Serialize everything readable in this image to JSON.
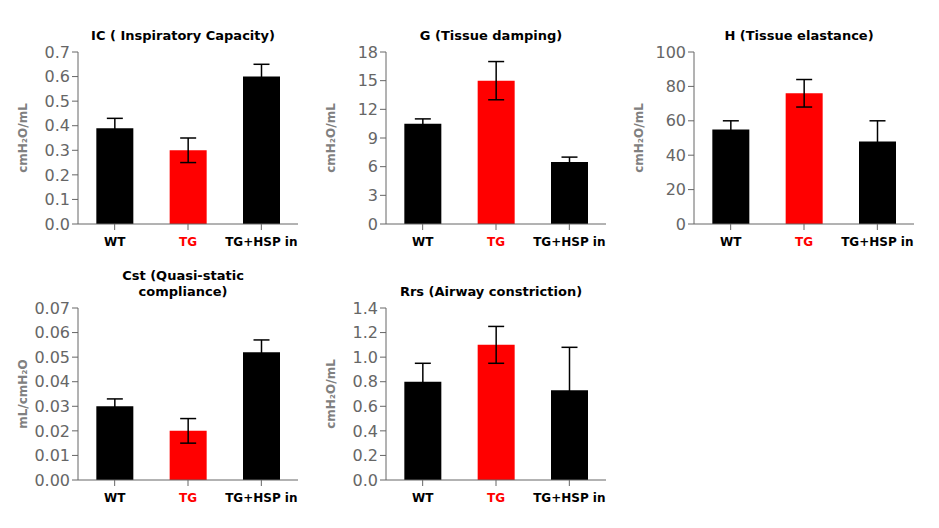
{
  "chart_data": [
    {
      "type": "bar",
      "title": "IC ( Inspiratory Capacity)",
      "y_label": "cmH₂O/mL",
      "categories": [
        "WT",
        "TG",
        "TG+HSP in"
      ],
      "values": [
        0.39,
        0.3,
        0.6
      ],
      "errors": [
        0.04,
        0.05,
        0.05
      ],
      "colors": [
        "black",
        "red",
        "black"
      ],
      "ylim": [
        0,
        0.7
      ],
      "yticks": [
        {
          "value": 0,
          "label": "0.0"
        },
        0.1,
        0.2,
        0.3,
        0.4,
        0.5,
        0.6,
        0.7
      ],
      "grid": false
    },
    {
      "type": "bar",
      "title": "G (Tissue damping)",
      "y_label": "cmH₂O/mL",
      "categories": [
        "WT",
        "TG",
        "TG+HSP in"
      ],
      "values": [
        10.5,
        15.0,
        6.5
      ],
      "errors": [
        0.5,
        2.0,
        0.5
      ],
      "colors": [
        "black",
        "red",
        "black"
      ],
      "ylim": [
        0,
        18
      ],
      "yticks": [
        0,
        3,
        6,
        9,
        12,
        15,
        18
      ],
      "grid": false
    },
    {
      "type": "bar",
      "title": "H (Tissue elastance)",
      "y_label": "cmH₂O/mL",
      "categories": [
        "WT",
        "TG",
        "TG+HSP in"
      ],
      "values": [
        55.0,
        76.0,
        48.0
      ],
      "errors": [
        5.0,
        8.0,
        12.0
      ],
      "colors": [
        "black",
        "red",
        "black"
      ],
      "ylim": [
        0,
        100
      ],
      "yticks": [
        0,
        20,
        40,
        60,
        80,
        100
      ],
      "grid": false
    },
    {
      "type": "bar",
      "title": "Cst (Quasi-static\ncompliance)",
      "y_label": "mL/cmH₂O",
      "categories": [
        "WT",
        "TG",
        "TG+HSP in"
      ],
      "values": [
        0.03,
        0.02,
        0.052
      ],
      "errors": [
        0.003,
        0.005,
        0.005
      ],
      "colors": [
        "black",
        "red",
        "black"
      ],
      "ylim": [
        0,
        0.07
      ],
      "yticks": [
        {
          "value": 0,
          "label": "0.00"
        },
        0.01,
        0.02,
        0.03,
        0.04,
        0.05,
        0.06,
        0.07
      ],
      "grid": false
    },
    {
      "type": "bar",
      "title": "Rrs (Airway constriction)",
      "y_label": "cmH₂O/mL",
      "categories": [
        "WT",
        "TG",
        "TG+HSP in"
      ],
      "values": [
        0.8,
        1.1,
        0.73
      ],
      "errors": [
        0.15,
        0.15,
        0.35
      ],
      "colors": [
        "black",
        "red",
        "black"
      ],
      "ylim": [
        0,
        1.4
      ],
      "yticks": [
        {
          "value": 0,
          "label": "0.0"
        },
        0.2,
        0.4,
        0.6,
        0.8,
        {
          "value": 1.0,
          "label": "1.0"
        },
        1.2,
        1.4
      ],
      "grid": false
    }
  ]
}
